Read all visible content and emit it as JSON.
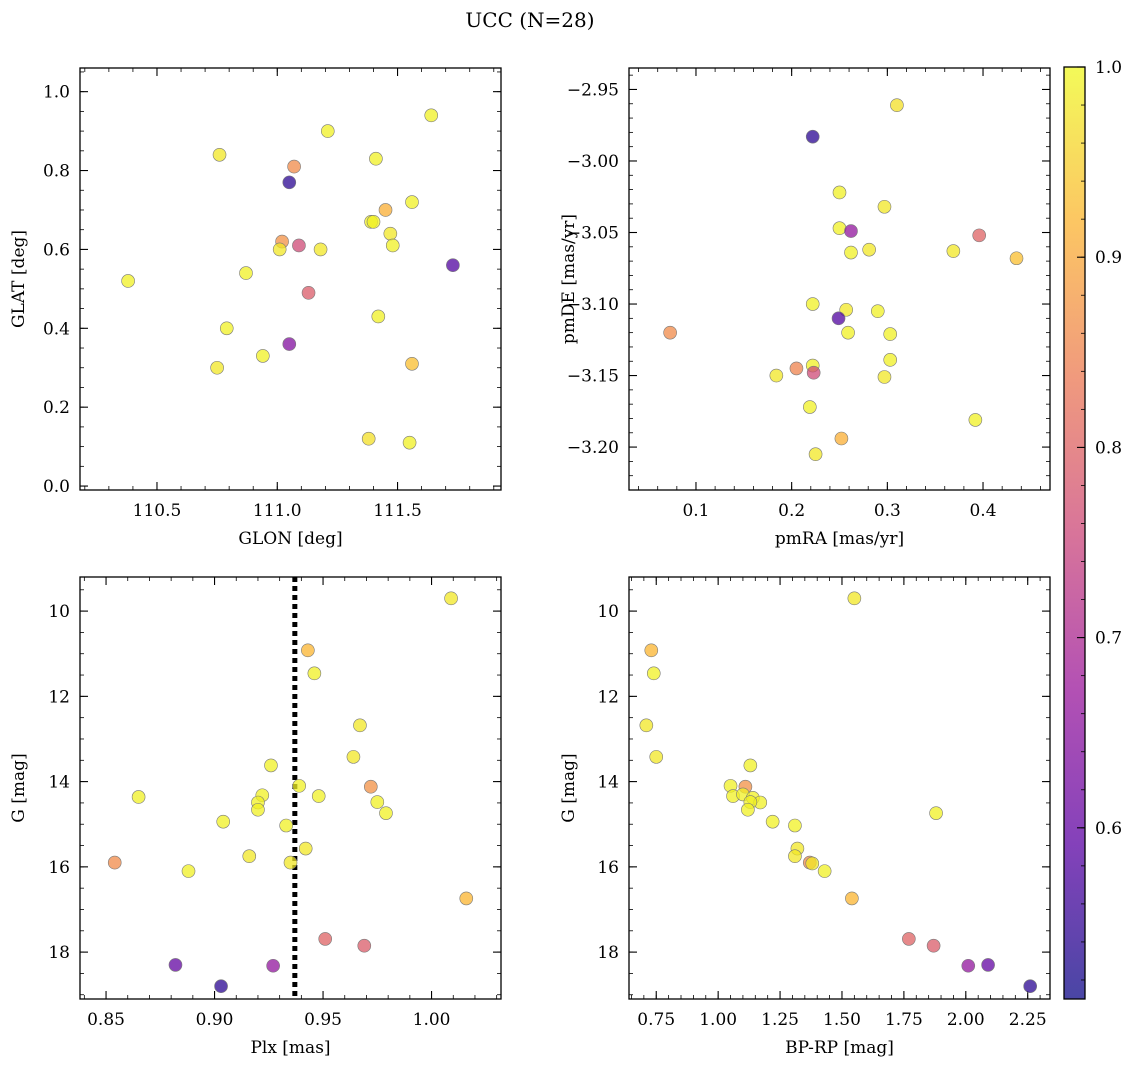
{
  "title": "UCC (N=28)",
  "chart_data": [
    {
      "type": "scatter",
      "xlabel": "GLON [deg]",
      "ylabel": "GLAT [deg]",
      "xlim": [
        110.18,
        111.93
      ],
      "ylim": [
        -0.01,
        1.06
      ],
      "xticks": [
        110.5,
        111.0,
        111.5
      ],
      "xtick_labels": [
        "110.5",
        "111.0",
        "111.5"
      ],
      "yticks": [
        0.0,
        0.2,
        0.4,
        0.6,
        0.8,
        1.0
      ],
      "ytick_labels": [
        "0.0",
        "0.2",
        "0.4",
        "0.6",
        "0.8",
        "1.0"
      ],
      "x_minor_step": 0.1,
      "y_minor_step": 0.05,
      "y_inverted": false,
      "points": [
        {
          "x": 111.64,
          "y": 0.94,
          "p": 0.99
        },
        {
          "x": 111.21,
          "y": 0.9,
          "p": 0.99
        },
        {
          "x": 110.76,
          "y": 0.84,
          "p": 0.98
        },
        {
          "x": 111.41,
          "y": 0.83,
          "p": 0.99
        },
        {
          "x": 111.07,
          "y": 0.81,
          "p": 0.86
        },
        {
          "x": 111.05,
          "y": 0.77,
          "p": 0.54
        },
        {
          "x": 111.56,
          "y": 0.72,
          "p": 0.99
        },
        {
          "x": 111.45,
          "y": 0.7,
          "p": 0.91
        },
        {
          "x": 111.39,
          "y": 0.67,
          "p": 0.99
        },
        {
          "x": 111.4,
          "y": 0.67,
          "p": 0.99
        },
        {
          "x": 111.47,
          "y": 0.64,
          "p": 0.98
        },
        {
          "x": 111.02,
          "y": 0.62,
          "p": 0.87
        },
        {
          "x": 111.09,
          "y": 0.61,
          "p": 0.76
        },
        {
          "x": 111.01,
          "y": 0.6,
          "p": 0.98
        },
        {
          "x": 111.18,
          "y": 0.6,
          "p": 0.98
        },
        {
          "x": 111.48,
          "y": 0.61,
          "p": 0.99
        },
        {
          "x": 111.73,
          "y": 0.56,
          "p": 0.58
        },
        {
          "x": 110.87,
          "y": 0.54,
          "p": 0.99
        },
        {
          "x": 110.38,
          "y": 0.52,
          "p": 0.99
        },
        {
          "x": 111.13,
          "y": 0.49,
          "p": 0.79
        },
        {
          "x": 111.42,
          "y": 0.43,
          "p": 0.99
        },
        {
          "x": 110.79,
          "y": 0.4,
          "p": 0.99
        },
        {
          "x": 111.05,
          "y": 0.36,
          "p": 0.64
        },
        {
          "x": 110.94,
          "y": 0.33,
          "p": 0.99
        },
        {
          "x": 111.56,
          "y": 0.31,
          "p": 0.93
        },
        {
          "x": 110.75,
          "y": 0.3,
          "p": 0.98
        },
        {
          "x": 111.38,
          "y": 0.12,
          "p": 0.97
        },
        {
          "x": 111.55,
          "y": 0.11,
          "p": 0.99
        }
      ]
    },
    {
      "type": "scatter",
      "xlabel": "pmRA [mas/yr]",
      "ylabel": "pmDE [mas/yr]",
      "xlim": [
        0.03,
        0.47
      ],
      "ylim": [
        -3.23,
        -2.935
      ],
      "xticks": [
        0.1,
        0.2,
        0.3,
        0.4
      ],
      "xtick_labels": [
        "0.1",
        "0.2",
        "0.3",
        "0.4"
      ],
      "yticks": [
        -3.2,
        -3.15,
        -3.1,
        -3.05,
        -3.0,
        -2.95
      ],
      "ytick_labels": [
        "−3.20",
        "−3.15",
        "−3.10",
        "−3.05",
        "−3.00",
        "−2.95"
      ],
      "x_minor_step": 0.02,
      "y_minor_step": 0.01,
      "y_inverted": false,
      "points": [
        {
          "x": 0.31,
          "y": -2.961,
          "p": 0.97
        },
        {
          "x": 0.222,
          "y": -2.983,
          "p": 0.54
        },
        {
          "x": 0.25,
          "y": -3.022,
          "p": 0.99
        },
        {
          "x": 0.297,
          "y": -3.032,
          "p": 0.98
        },
        {
          "x": 0.25,
          "y": -3.047,
          "p": 0.99
        },
        {
          "x": 0.262,
          "y": -3.049,
          "p": 0.66
        },
        {
          "x": 0.396,
          "y": -3.052,
          "p": 0.8
        },
        {
          "x": 0.281,
          "y": -3.062,
          "p": 0.98
        },
        {
          "x": 0.369,
          "y": -3.063,
          "p": 0.98
        },
        {
          "x": 0.262,
          "y": -3.064,
          "p": 0.99
        },
        {
          "x": 0.435,
          "y": -3.068,
          "p": 0.93
        },
        {
          "x": 0.222,
          "y": -3.1,
          "p": 0.99
        },
        {
          "x": 0.257,
          "y": -3.104,
          "p": 0.98
        },
        {
          "x": 0.29,
          "y": -3.105,
          "p": 0.99
        },
        {
          "x": 0.249,
          "y": -3.11,
          "p": 0.58
        },
        {
          "x": 0.073,
          "y": -3.12,
          "p": 0.86
        },
        {
          "x": 0.259,
          "y": -3.12,
          "p": 0.99
        },
        {
          "x": 0.303,
          "y": -3.121,
          "p": 0.99
        },
        {
          "x": 0.303,
          "y": -3.139,
          "p": 0.99
        },
        {
          "x": 0.205,
          "y": -3.145,
          "p": 0.85
        },
        {
          "x": 0.222,
          "y": -3.143,
          "p": 0.99
        },
        {
          "x": 0.223,
          "y": -3.148,
          "p": 0.76
        },
        {
          "x": 0.184,
          "y": -3.15,
          "p": 0.98
        },
        {
          "x": 0.297,
          "y": -3.151,
          "p": 0.98
        },
        {
          "x": 0.219,
          "y": -3.172,
          "p": 0.99
        },
        {
          "x": 0.392,
          "y": -3.181,
          "p": 0.99
        },
        {
          "x": 0.252,
          "y": -3.194,
          "p": 0.91
        },
        {
          "x": 0.225,
          "y": -3.205,
          "p": 0.98
        }
      ]
    },
    {
      "type": "scatter",
      "xlabel": "Plx [mas]",
      "ylabel": "G [mag]",
      "xlim": [
        0.838,
        1.032
      ],
      "ylim": [
        9.2,
        19.1
      ],
      "xticks": [
        0.85,
        0.9,
        0.95,
        1.0
      ],
      "xtick_labels": [
        "0.85",
        "0.90",
        "0.95",
        "1.00"
      ],
      "yticks": [
        10,
        12,
        14,
        16,
        18
      ],
      "ytick_labels": [
        "10",
        "12",
        "14",
        "16",
        "18"
      ],
      "x_minor_step": 0.01,
      "y_minor_step": 0.5,
      "y_inverted": true,
      "vline": {
        "x": 0.937,
        "style": "dotted"
      },
      "points": [
        {
          "x": 1.009,
          "y": 9.7,
          "p": 0.98
        },
        {
          "x": 0.943,
          "y": 10.92,
          "p": 0.92
        },
        {
          "x": 0.946,
          "y": 11.46,
          "p": 0.99
        },
        {
          "x": 0.967,
          "y": 12.68,
          "p": 0.98
        },
        {
          "x": 0.964,
          "y": 13.42,
          "p": 0.98
        },
        {
          "x": 0.926,
          "y": 13.62,
          "p": 0.99
        },
        {
          "x": 0.939,
          "y": 14.1,
          "p": 0.99
        },
        {
          "x": 0.972,
          "y": 14.12,
          "p": 0.87
        },
        {
          "x": 0.865,
          "y": 14.36,
          "p": 0.99
        },
        {
          "x": 0.922,
          "y": 14.32,
          "p": 0.99
        },
        {
          "x": 0.948,
          "y": 14.34,
          "p": 0.99
        },
        {
          "x": 0.92,
          "y": 14.49,
          "p": 0.99
        },
        {
          "x": 0.975,
          "y": 14.48,
          "p": 0.99
        },
        {
          "x": 0.92,
          "y": 14.66,
          "p": 0.99
        },
        {
          "x": 0.979,
          "y": 14.74,
          "p": 0.99
        },
        {
          "x": 0.904,
          "y": 14.94,
          "p": 0.99
        },
        {
          "x": 0.933,
          "y": 15.03,
          "p": 0.99
        },
        {
          "x": 0.942,
          "y": 15.57,
          "p": 0.98
        },
        {
          "x": 0.916,
          "y": 15.75,
          "p": 0.98
        },
        {
          "x": 0.854,
          "y": 15.9,
          "p": 0.86
        },
        {
          "x": 0.935,
          "y": 15.9,
          "p": 0.98
        },
        {
          "x": 0.888,
          "y": 16.1,
          "p": 0.99
        },
        {
          "x": 1.016,
          "y": 16.74,
          "p": 0.92
        },
        {
          "x": 0.951,
          "y": 17.69,
          "p": 0.8
        },
        {
          "x": 0.969,
          "y": 17.85,
          "p": 0.79
        },
        {
          "x": 0.882,
          "y": 18.3,
          "p": 0.6
        },
        {
          "x": 0.927,
          "y": 18.32,
          "p": 0.66
        },
        {
          "x": 0.903,
          "y": 18.8,
          "p": 0.54
        }
      ]
    },
    {
      "type": "scatter",
      "xlabel": "BP-RP [mag]",
      "ylabel": "G [mag]",
      "xlim": [
        0.64,
        2.34
      ],
      "ylim": [
        9.2,
        19.1
      ],
      "xticks": [
        0.75,
        1.0,
        1.25,
        1.5,
        1.75,
        2.0,
        2.25
      ],
      "xtick_labels": [
        "0.75",
        "1.00",
        "1.25",
        "1.50",
        "1.75",
        "2.00",
        "2.25"
      ],
      "yticks": [
        10,
        12,
        14,
        16,
        18
      ],
      "ytick_labels": [
        "10",
        "12",
        "14",
        "16",
        "18"
      ],
      "x_minor_step": 0.05,
      "y_minor_step": 0.5,
      "y_inverted": true,
      "points": [
        {
          "x": 1.55,
          "y": 9.7,
          "p": 0.98
        },
        {
          "x": 0.73,
          "y": 10.92,
          "p": 0.92
        },
        {
          "x": 0.74,
          "y": 11.46,
          "p": 0.99
        },
        {
          "x": 0.71,
          "y": 12.68,
          "p": 0.98
        },
        {
          "x": 0.75,
          "y": 13.42,
          "p": 0.98
        },
        {
          "x": 1.13,
          "y": 13.62,
          "p": 0.99
        },
        {
          "x": 1.05,
          "y": 14.1,
          "p": 0.99
        },
        {
          "x": 1.11,
          "y": 14.12,
          "p": 0.87
        },
        {
          "x": 1.06,
          "y": 14.34,
          "p": 0.99
        },
        {
          "x": 1.1,
          "y": 14.3,
          "p": 0.99
        },
        {
          "x": 1.14,
          "y": 14.38,
          "p": 0.99
        },
        {
          "x": 1.17,
          "y": 14.49,
          "p": 0.99
        },
        {
          "x": 1.13,
          "y": 14.48,
          "p": 0.99
        },
        {
          "x": 1.12,
          "y": 14.66,
          "p": 0.99
        },
        {
          "x": 1.88,
          "y": 14.74,
          "p": 0.99
        },
        {
          "x": 1.22,
          "y": 14.94,
          "p": 0.99
        },
        {
          "x": 1.31,
          "y": 15.03,
          "p": 0.99
        },
        {
          "x": 1.32,
          "y": 15.57,
          "p": 0.98
        },
        {
          "x": 1.31,
          "y": 15.75,
          "p": 0.98
        },
        {
          "x": 1.37,
          "y": 15.9,
          "p": 0.86
        },
        {
          "x": 1.38,
          "y": 15.92,
          "p": 0.98
        },
        {
          "x": 1.43,
          "y": 16.1,
          "p": 0.99
        },
        {
          "x": 1.54,
          "y": 16.74,
          "p": 0.92
        },
        {
          "x": 1.77,
          "y": 17.69,
          "p": 0.8
        },
        {
          "x": 1.87,
          "y": 17.85,
          "p": 0.79
        },
        {
          "x": 2.01,
          "y": 18.32,
          "p": 0.66
        },
        {
          "x": 2.09,
          "y": 18.3,
          "p": 0.6
        },
        {
          "x": 2.26,
          "y": 18.8,
          "p": 0.54
        }
      ]
    }
  ],
  "colorbar": {
    "colormap": "plasma",
    "range": [
      0.51,
      1.0
    ],
    "colormap_stops": [
      "#0d0887",
      "#5b02a3",
      "#9a179b",
      "#cb4678",
      "#eb7852",
      "#fbb32f",
      "#eff821"
    ],
    "marker_alpha": 0.75,
    "ticks": [
      0.6,
      0.7,
      0.8,
      0.9,
      1.0
    ],
    "tick_labels": [
      "0.6",
      "0.7",
      "0.8",
      "0.9",
      "1.0"
    ]
  }
}
